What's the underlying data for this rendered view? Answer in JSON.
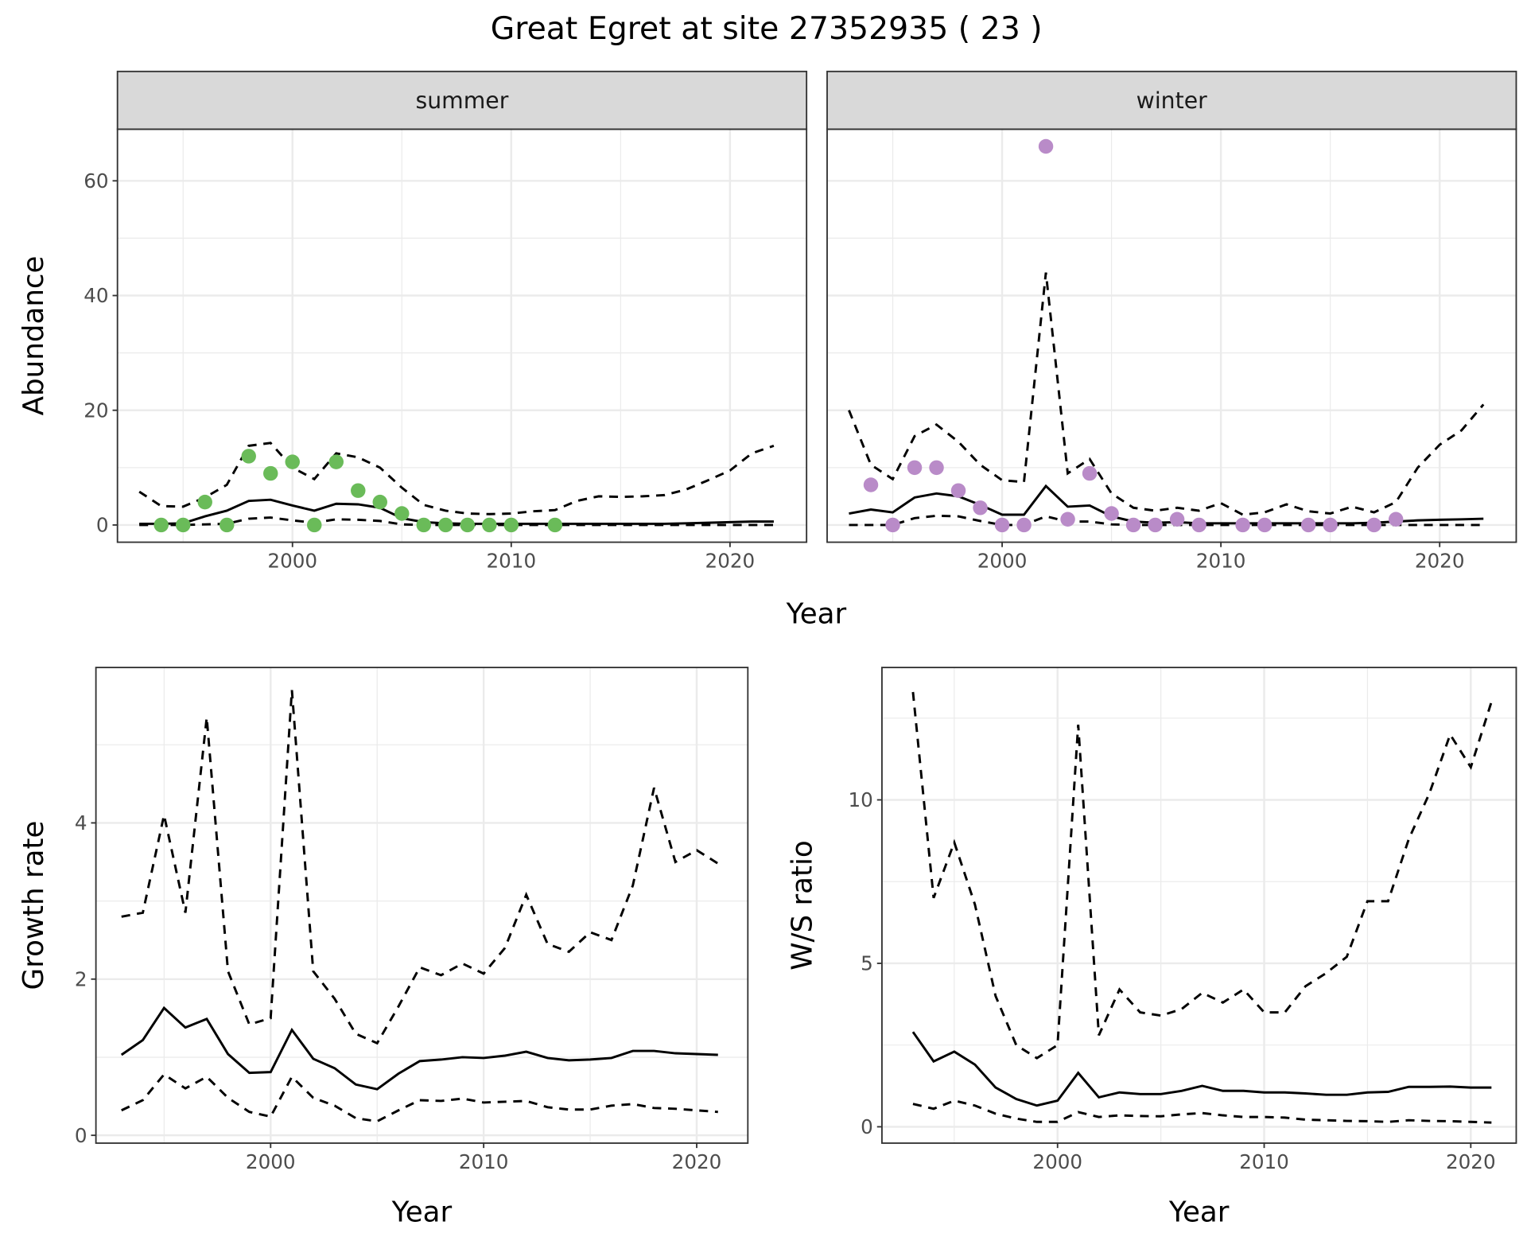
{
  "title": "Great Egret at site 27352935 ( 23 )",
  "colors": {
    "summer": "#6abb59",
    "winter": "#b98bc8",
    "line": "#000000",
    "grid": "#ebebeb",
    "strip": "#d9d9d9"
  },
  "chart_data": [
    {
      "type": "line",
      "facet": "summer",
      "xlabel": "Year",
      "ylabel": "Abundance",
      "xlim": [
        1992,
        2023.5
      ],
      "ylim": [
        -3,
        69
      ],
      "xticks": [
        2000,
        2010,
        2020
      ],
      "yticks": [
        0,
        20,
        40,
        60
      ],
      "x": [
        1993,
        1994,
        1995,
        1996,
        1997,
        1998,
        1999,
        2000,
        2001,
        2002,
        2003,
        2004,
        2005,
        2006,
        2007,
        2008,
        2009,
        2010,
        2011,
        2012,
        2013,
        2014,
        2015,
        2016,
        2017,
        2018,
        2019,
        2020,
        2021,
        2022
      ],
      "mean": [
        0.2,
        0.2,
        0.3,
        1.5,
        2.5,
        4.2,
        4.4,
        3.4,
        2.5,
        3.7,
        3.6,
        3.0,
        1.2,
        0.5,
        0.3,
        0.2,
        0.2,
        0.2,
        0.2,
        0.2,
        0.2,
        0.2,
        0.2,
        0.2,
        0.2,
        0.3,
        0.4,
        0.5,
        0.6,
        0.6
      ],
      "upper": [
        5.8,
        3.3,
        3.2,
        4.8,
        7,
        13.8,
        14.3,
        10,
        8,
        12.5,
        11.8,
        10,
        6.5,
        3.5,
        2.5,
        2.0,
        1.9,
        2.0,
        2.4,
        2.6,
        4.2,
        5,
        4.9,
        5,
        5.2,
        6.2,
        7.8,
        9.5,
        12.5,
        13.8
      ],
      "lower": [
        0,
        0,
        0,
        0.1,
        0.2,
        1.1,
        1.3,
        0.8,
        0.4,
        1.0,
        0.9,
        0.7,
        0.1,
        0,
        0,
        0,
        0,
        0,
        0,
        0,
        0,
        0,
        0,
        0,
        0,
        0,
        0,
        0,
        0,
        0
      ],
      "points": {
        "x": [
          1994,
          1995,
          1996,
          1997,
          1998,
          1999,
          2000,
          2001,
          2002,
          2003,
          2004,
          2005,
          2006,
          2007,
          2008,
          2009,
          2010,
          2012
        ],
        "y": [
          0,
          0,
          4,
          0,
          12,
          9,
          11,
          0,
          11,
          6,
          4,
          2,
          0,
          0,
          0,
          0,
          0,
          0
        ]
      }
    },
    {
      "type": "line",
      "facet": "winter",
      "xlabel": "Year",
      "ylabel": "Abundance",
      "xlim": [
        1992,
        2023.5
      ],
      "ylim": [
        -3,
        69
      ],
      "xticks": [
        2000,
        2010,
        2020
      ],
      "yticks": [
        0,
        20,
        40,
        60
      ],
      "x": [
        1993,
        1994,
        1995,
        1996,
        1997,
        1998,
        1999,
        2000,
        2001,
        2002,
        2003,
        2004,
        2005,
        2006,
        2007,
        2008,
        2009,
        2010,
        2011,
        2012,
        2013,
        2014,
        2015,
        2016,
        2017,
        2018,
        2019,
        2020,
        2021,
        2022
      ],
      "mean": [
        2,
        2.7,
        2.2,
        4.8,
        5.5,
        5,
        3.5,
        1.8,
        1.8,
        6.8,
        3.2,
        3.4,
        1.5,
        0.6,
        0.4,
        0.5,
        0.3,
        0.3,
        0.3,
        0.3,
        0.3,
        0.3,
        0.3,
        0.3,
        0.4,
        0.6,
        0.8,
        0.9,
        1,
        1.1
      ],
      "upper": [
        20,
        10.5,
        8,
        15.5,
        17.5,
        14.5,
        10.5,
        7.8,
        7.5,
        44,
        9,
        11.5,
        5.5,
        3,
        2.5,
        3,
        2.5,
        3.8,
        1.8,
        2.2,
        3.6,
        2.4,
        2,
        3.2,
        2.2,
        4,
        10,
        14,
        16.5,
        21
      ],
      "lower": [
        0,
        0,
        0,
        1.2,
        1.6,
        1.5,
        0.7,
        0,
        0,
        1.5,
        0.6,
        0.6,
        0.1,
        0,
        0,
        0,
        0,
        0,
        0,
        0,
        0,
        0,
        0,
        0,
        0,
        0,
        0,
        0,
        0,
        0
      ],
      "points": {
        "x": [
          1994,
          1995,
          1996,
          1997,
          1998,
          1999,
          2000,
          2001,
          2002,
          2003,
          2004,
          2005,
          2006,
          2007,
          2008,
          2009,
          2011,
          2012,
          2014,
          2015,
          2017,
          2018
        ],
        "y": [
          7,
          0,
          10,
          10,
          6,
          3,
          0,
          0,
          66,
          1,
          9,
          2,
          0,
          0,
          1,
          0,
          0,
          0,
          0,
          0,
          0,
          1
        ]
      }
    },
    {
      "type": "line",
      "xlabel": "Year",
      "ylabel": "Growth rate",
      "xlim": [
        1991.8,
        2022.4
      ],
      "ylim": [
        -0.1,
        5.99
      ],
      "xticks": [
        2000,
        2010,
        2020
      ],
      "yticks": [
        0,
        2,
        4
      ],
      "x": [
        1993,
        1994,
        1995,
        1996,
        1997,
        1998,
        1999,
        2000,
        2001,
        2002,
        2003,
        2004,
        2005,
        2006,
        2007,
        2008,
        2009,
        2010,
        2011,
        2012,
        2013,
        2014,
        2015,
        2016,
        2017,
        2018,
        2019,
        2020,
        2021
      ],
      "mean": [
        1.03,
        1.22,
        1.63,
        1.38,
        1.49,
        1.04,
        0.8,
        0.81,
        1.35,
        0.98,
        0.86,
        0.65,
        0.59,
        0.79,
        0.95,
        0.97,
        1.0,
        0.99,
        1.02,
        1.07,
        0.99,
        0.96,
        0.97,
        0.99,
        1.08,
        1.08,
        1.05,
        1.04,
        1.03
      ],
      "upper": [
        2.8,
        2.85,
        4.1,
        2.85,
        5.35,
        2.1,
        1.42,
        1.5,
        5.7,
        2.1,
        1.75,
        1.3,
        1.18,
        1.65,
        2.15,
        2.05,
        2.2,
        2.07,
        2.4,
        3.08,
        2.45,
        2.35,
        2.6,
        2.5,
        3.2,
        4.45,
        3.5,
        3.65,
        3.48
      ],
      "lower": [
        0.32,
        0.45,
        0.78,
        0.6,
        0.75,
        0.48,
        0.3,
        0.24,
        0.75,
        0.48,
        0.38,
        0.22,
        0.18,
        0.32,
        0.45,
        0.44,
        0.47,
        0.42,
        0.43,
        0.44,
        0.36,
        0.33,
        0.33,
        0.38,
        0.4,
        0.35,
        0.34,
        0.32,
        0.3
      ]
    },
    {
      "type": "line",
      "xlabel": "Year",
      "ylabel": "W/S ratio",
      "xlim": [
        1991.5,
        2022.2
      ],
      "ylim": [
        -0.5,
        14.05
      ],
      "xticks": [
        2000,
        2010,
        2020
      ],
      "yticks": [
        0,
        5,
        10
      ],
      "x": [
        1993,
        1994,
        1995,
        1996,
        1997,
        1998,
        1999,
        2000,
        2001,
        2002,
        2003,
        2004,
        2005,
        2006,
        2007,
        2008,
        2009,
        2010,
        2011,
        2012,
        2013,
        2014,
        2015,
        2016,
        2017,
        2018,
        2019,
        2020,
        2021
      ],
      "mean": [
        2.9,
        2.0,
        2.3,
        1.9,
        1.2,
        0.85,
        0.65,
        0.8,
        1.65,
        0.9,
        1.05,
        1.0,
        1.0,
        1.1,
        1.25,
        1.1,
        1.1,
        1.05,
        1.05,
        1.02,
        0.98,
        0.98,
        1.05,
        1.07,
        1.22,
        1.22,
        1.23,
        1.2,
        1.2
      ],
      "upper": [
        13.3,
        7,
        8.7,
        6.8,
        4,
        2.5,
        2.1,
        2.5,
        12.3,
        2.8,
        4.2,
        3.5,
        3.4,
        3.6,
        4.1,
        3.8,
        4.2,
        3.5,
        3.5,
        4.3,
        4.7,
        5.2,
        6.9,
        6.9,
        8.8,
        10.2,
        12,
        11,
        13
      ],
      "lower": [
        0.7,
        0.55,
        0.8,
        0.65,
        0.4,
        0.25,
        0.15,
        0.15,
        0.45,
        0.3,
        0.35,
        0.33,
        0.32,
        0.38,
        0.42,
        0.35,
        0.3,
        0.3,
        0.28,
        0.22,
        0.2,
        0.18,
        0.17,
        0.15,
        0.2,
        0.18,
        0.17,
        0.15,
        0.13
      ]
    }
  ]
}
